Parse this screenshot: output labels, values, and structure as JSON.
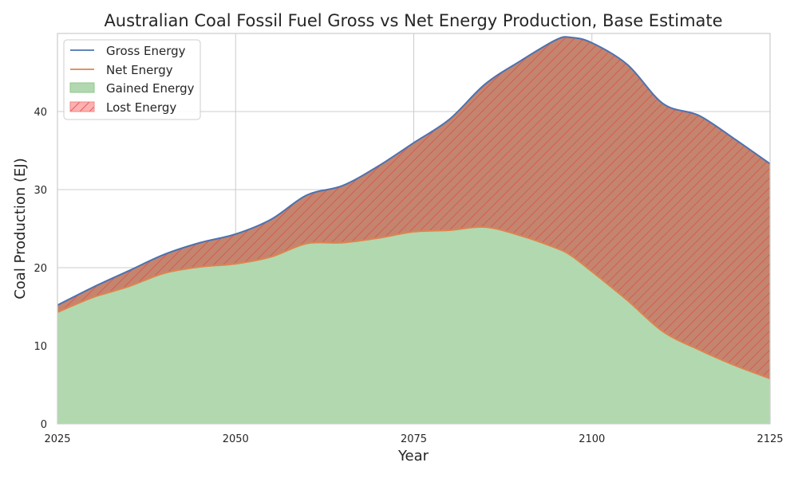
{
  "chart_data": {
    "type": "area",
    "title": "Australian Coal Fossil Fuel Gross vs Net Energy Production, Base Estimate",
    "xlabel": "Year",
    "ylabel": "Coal Production (EJ)",
    "xlim": [
      2025,
      2125
    ],
    "ylim": [
      0,
      50
    ],
    "x_ticks": [
      2025,
      2050,
      2075,
      2100,
      2125
    ],
    "y_ticks": [
      0,
      10,
      20,
      30,
      40
    ],
    "grid": true,
    "legend_position": "top-left",
    "colors": {
      "gross": "#4c72b0",
      "net": "#dd8452",
      "gained": "#b2d8b0",
      "lost": "#c4856e",
      "hatch": "#d9534f",
      "grid": "#cccccc"
    },
    "x": [
      2025,
      2030,
      2035,
      2040,
      2045,
      2050,
      2055,
      2060,
      2065,
      2070,
      2075,
      2080,
      2085,
      2090,
      2095,
      2097,
      2100,
      2105,
      2110,
      2115,
      2120,
      2125
    ],
    "series": [
      {
        "name": "Gross Energy",
        "values": [
          15.2,
          17.5,
          19.6,
          21.7,
          23.2,
          24.3,
          26.2,
          29.3,
          30.5,
          33.0,
          36.0,
          39.0,
          43.5,
          46.5,
          49.2,
          49.5,
          48.8,
          46.0,
          41.0,
          39.5,
          36.5,
          33.3
        ]
      },
      {
        "name": "Net Energy",
        "values": [
          14.3,
          16.2,
          17.6,
          19.3,
          20.1,
          20.5,
          21.4,
          23.1,
          23.2,
          23.8,
          24.6,
          24.8,
          25.2,
          24.1,
          22.5,
          21.6,
          19.5,
          15.8,
          11.8,
          9.5,
          7.5,
          5.8
        ]
      }
    ],
    "fill_series": [
      {
        "name": "Gained Energy"
      },
      {
        "name": "Lost Energy"
      }
    ]
  }
}
